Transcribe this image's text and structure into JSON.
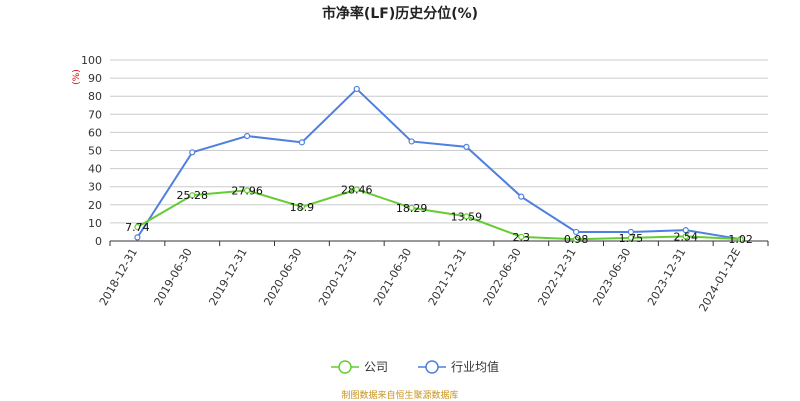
{
  "chart_data": {
    "type": "line",
    "title": "市净率(LF)历史分位(%)",
    "ylabel": "(%)",
    "xlabel": "",
    "ylim": [
      0,
      100
    ],
    "yticks": [
      0,
      10,
      20,
      30,
      40,
      50,
      60,
      70,
      80,
      90,
      100
    ],
    "categories": [
      "2018-12-31",
      "2019-06-30",
      "2019-12-31",
      "2020-06-30",
      "2020-12-31",
      "2021-06-30",
      "2021-12-31",
      "2022-06-30",
      "2022-12-31",
      "2023-06-30",
      "2023-12-31",
      "2024-01-12E"
    ],
    "series": [
      {
        "name": "公司",
        "color": "#66cc33",
        "values": [
          7.74,
          25.28,
          27.96,
          18.9,
          28.46,
          18.29,
          13.59,
          2.3,
          0.98,
          1.75,
          2.54,
          1.02
        ],
        "labels": [
          "7.74",
          "25.28",
          "27.96",
          "18.9",
          "28.46",
          "18.29",
          "13.59",
          "2.3",
          "0.98",
          "1.75",
          "2.54",
          "1.02"
        ]
      },
      {
        "name": "行业均值",
        "color": "#4f7fdf",
        "values": [
          2.0,
          49.0,
          58.0,
          54.5,
          84.0,
          55.0,
          52.0,
          24.5,
          5.0,
          5.0,
          6.0,
          1.0
        ]
      }
    ],
    "grid": true,
    "legend": "bottom-center"
  },
  "source_note": "制图数据来自恒生聚源数据库"
}
